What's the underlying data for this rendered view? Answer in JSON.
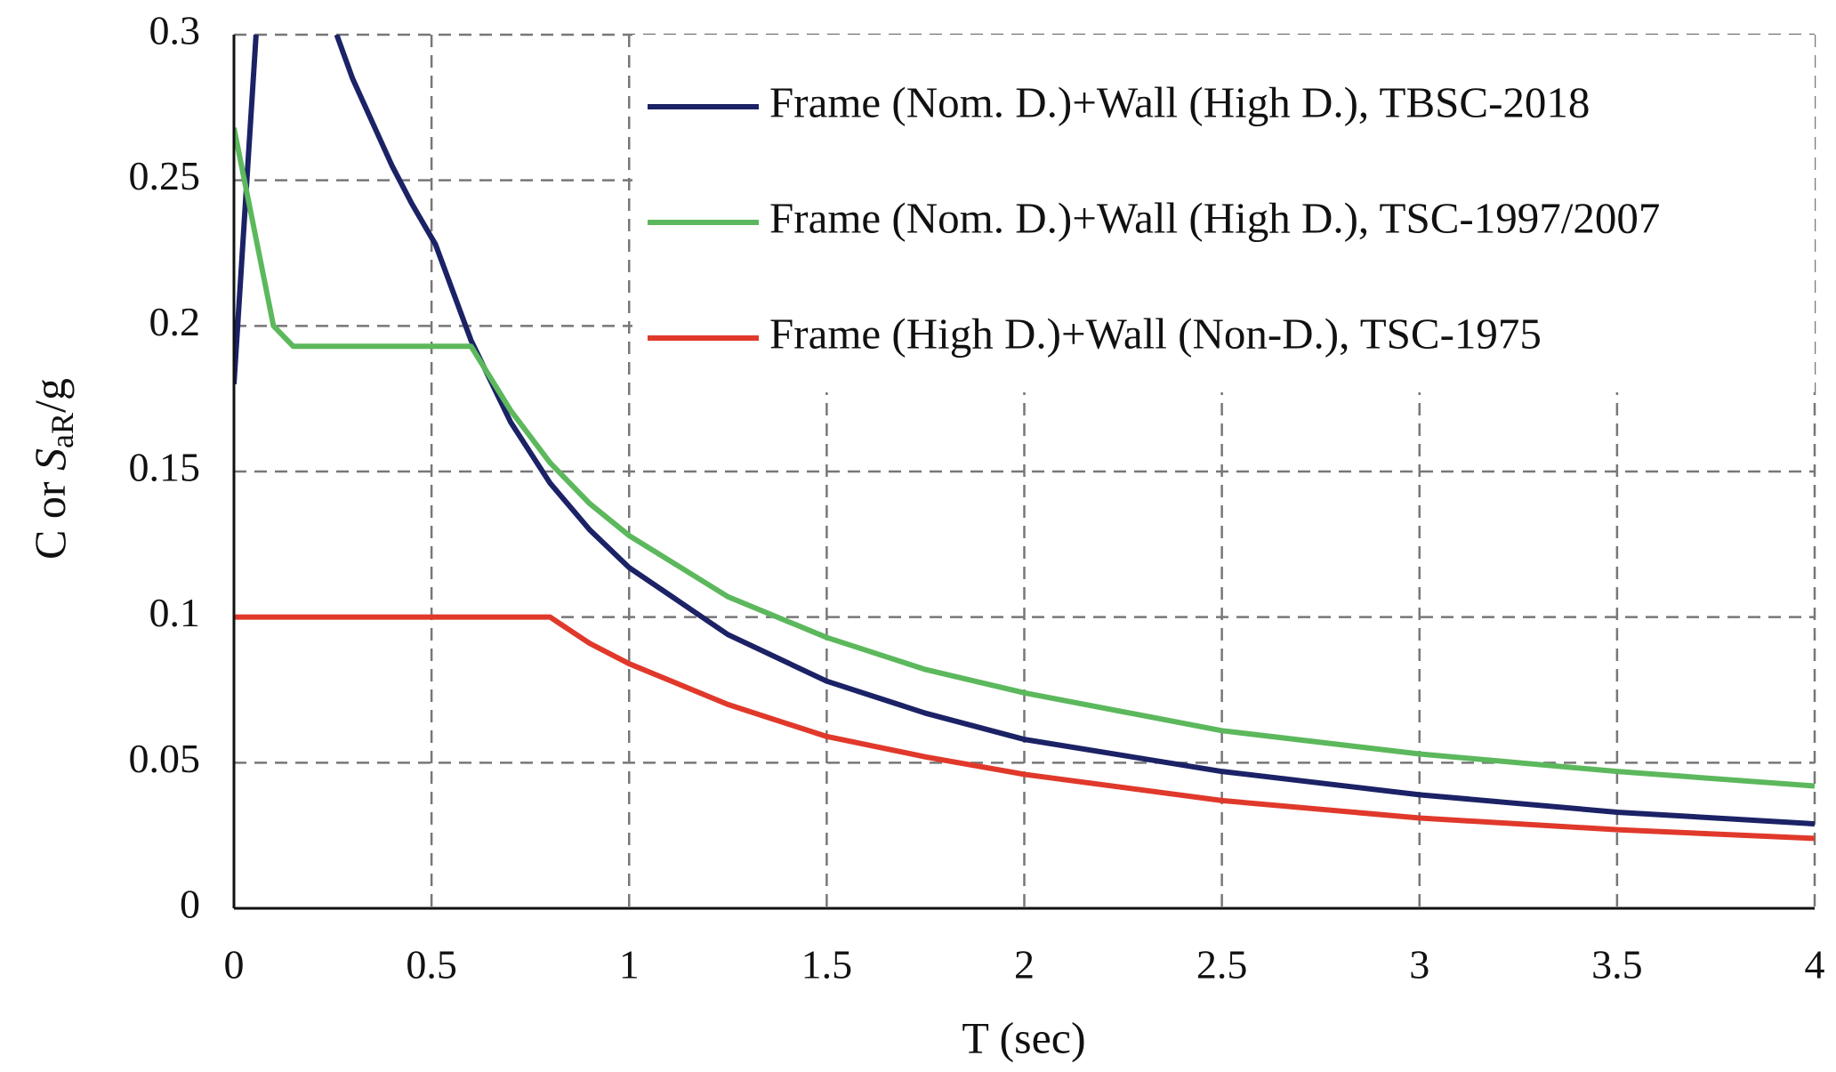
{
  "chart_data": {
    "type": "line",
    "xlabel": "T (sec)",
    "ylabel_parts": [
      "C or ",
      "S",
      "aR",
      "/g"
    ],
    "xlim": [
      0,
      4
    ],
    "xticks": [
      0,
      0.5,
      1,
      1.5,
      2,
      2.5,
      3,
      3.5,
      4
    ],
    "ylim": [
      0,
      0.3
    ],
    "yticks": [
      0,
      0.05,
      0.1,
      0.15,
      0.2,
      0.25,
      0.3
    ],
    "grid": true,
    "legend": "upper right",
    "series": [
      {
        "name": "Frame (Nom. D.)+Wall (High D.), TBSC-2018",
        "color": "#1b2266",
        "x": [
          0,
          0.056,
          0.15,
          0.26,
          0.3,
          0.35,
          0.4,
          0.45,
          0.51,
          0.6,
          0.7,
          0.8,
          0.9,
          1.0,
          1.25,
          1.5,
          1.75,
          2,
          2.5,
          3,
          3.5,
          4
        ],
        "values": [
          0.18,
          0.3,
          null,
          0.3,
          0.285,
          0.27,
          0.255,
          0.242,
          0.228,
          0.195,
          0.167,
          0.146,
          0.13,
          0.117,
          0.094,
          0.078,
          0.067,
          0.058,
          0.047,
          0.039,
          0.033,
          0.029
        ]
      },
      {
        "name": "Frame (Nom. D.)+Wall (High D.), TSC-1997/2007",
        "color": "#5cb85c",
        "x": [
          0,
          0.1,
          0.15,
          0.6,
          0.7,
          0.8,
          0.9,
          1.0,
          1.25,
          1.5,
          1.75,
          2,
          2.5,
          3,
          3.5,
          4
        ],
        "values": [
          0.268,
          0.2,
          0.193,
          0.193,
          0.171,
          0.153,
          0.139,
          0.128,
          0.107,
          0.093,
          0.082,
          0.074,
          0.061,
          0.053,
          0.047,
          0.042
        ]
      },
      {
        "name": "Frame (High D.)+Wall (Non-D.), TSC-1975",
        "color": "#e0392b",
        "x": [
          0,
          0.8,
          0.9,
          1.0,
          1.25,
          1.5,
          1.75,
          2,
          2.5,
          3,
          3.5,
          4
        ],
        "values": [
          0.1,
          0.1,
          0.091,
          0.084,
          0.07,
          0.059,
          0.052,
          0.046,
          0.037,
          0.031,
          0.027,
          0.024
        ]
      }
    ]
  }
}
